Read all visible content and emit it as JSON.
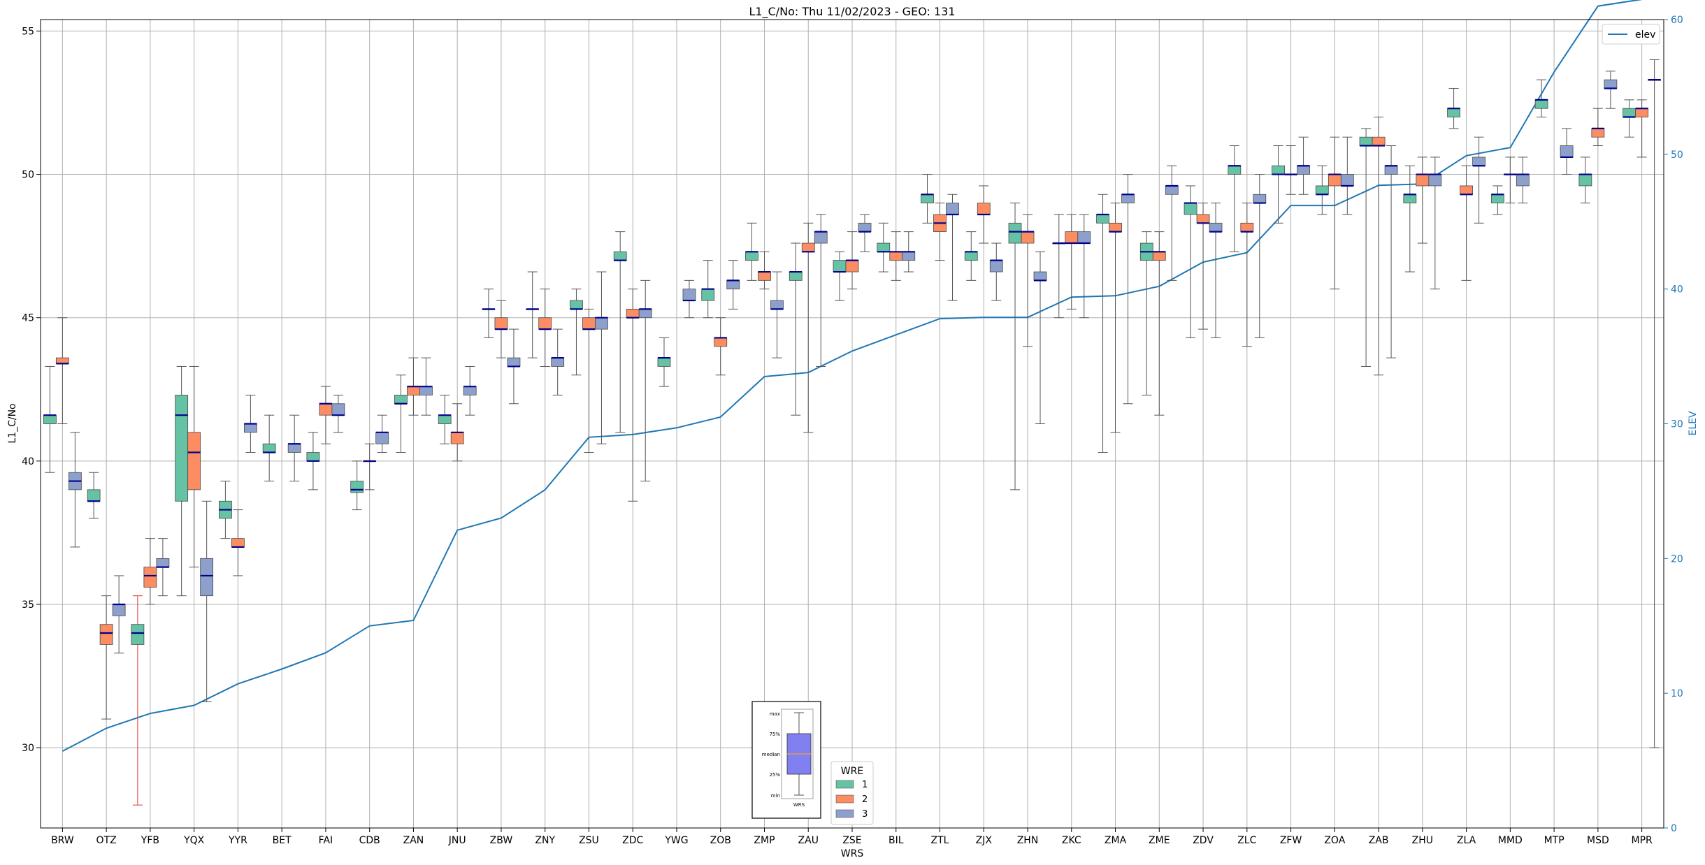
{
  "chart_data": {
    "type": "box",
    "title": "L1_C/No: Thu 11/02/2023 - GEO: 131",
    "xlabel": "WRS",
    "ylabel": "L1_C/No",
    "y2label": "ELEV",
    "ylim": [
      27.2,
      55.4
    ],
    "y2lim": [
      0,
      60
    ],
    "yticks": [
      30,
      35,
      40,
      45,
      50,
      55
    ],
    "y2ticks": [
      0,
      10,
      20,
      30,
      40,
      50,
      60
    ],
    "grid": true,
    "categories": [
      "BRW",
      "OTZ",
      "YFB",
      "YQX",
      "YYR",
      "BET",
      "FAI",
      "CDB",
      "ZAN",
      "JNU",
      "ZBW",
      "ZNY",
      "ZSU",
      "ZDC",
      "YWG",
      "ZOB",
      "ZMP",
      "ZAU",
      "ZSE",
      "BIL",
      "ZTL",
      "ZJX",
      "ZHN",
      "ZKC",
      "ZMA",
      "ZME",
      "ZDV",
      "ZLC",
      "ZFW",
      "ZOA",
      "ZAB",
      "ZHU",
      "ZLA",
      "MMD",
      "MTP",
      "MSD",
      "MPR"
    ],
    "legend": {
      "title": "WRE",
      "placement": "bottom-center",
      "entries": [
        {
          "name": "1",
          "color": "#66c2a5"
        },
        {
          "name": "2",
          "color": "#fc8d62"
        },
        {
          "name": "3",
          "color": "#8da0cb"
        }
      ]
    },
    "line_legend": {
      "name": "elev",
      "color": "#1f77b4",
      "placement": "top-right"
    },
    "inset_labels": [
      "max",
      "75%",
      "median",
      "25%",
      "min"
    ],
    "inset_xlabel": "WRS",
    "colors": {
      "1": "#66c2a5",
      "2": "#fc8d62",
      "3": "#8da0cb",
      "median": "#00008b",
      "whisker": "#555555",
      "whisker_alert": "#e03030",
      "elev": "#1f77b4",
      "inset_box": "#8080f0"
    },
    "boxes": [
      {
        "cat": "BRW",
        "wre": 1,
        "min": 39.6,
        "q1": 41.3,
        "median": 41.6,
        "q3": 41.6,
        "max": 43.3
      },
      {
        "cat": "BRW",
        "wre": 2,
        "min": 41.3,
        "q1": 43.4,
        "median": 43.4,
        "q3": 43.6,
        "max": 45.0
      },
      {
        "cat": "BRW",
        "wre": 3,
        "min": 37.0,
        "q1": 39.0,
        "median": 39.3,
        "q3": 39.6,
        "max": 41.0
      },
      {
        "cat": "OTZ",
        "wre": 1,
        "min": 38.0,
        "q1": 38.6,
        "median": 38.6,
        "q3": 39.0,
        "max": 39.6
      },
      {
        "cat": "OTZ",
        "wre": 2,
        "min": 31.0,
        "q1": 33.6,
        "median": 34.0,
        "q3": 34.3,
        "max": 35.3
      },
      {
        "cat": "OTZ",
        "wre": 3,
        "min": 33.3,
        "q1": 34.6,
        "median": 35.0,
        "q3": 35.0,
        "max": 36.0
      },
      {
        "cat": "YFB",
        "wre": 1,
        "min": 28.0,
        "q1": 33.6,
        "median": 34.0,
        "q3": 34.3,
        "max": 35.3,
        "alert": true
      },
      {
        "cat": "YFB",
        "wre": 2,
        "min": 35.0,
        "q1": 35.6,
        "median": 36.0,
        "q3": 36.3,
        "max": 37.3
      },
      {
        "cat": "YFB",
        "wre": 3,
        "min": 35.3,
        "q1": 36.3,
        "median": 36.3,
        "q3": 36.6,
        "max": 37.3
      },
      {
        "cat": "YQX",
        "wre": 1,
        "min": 35.3,
        "q1": 38.6,
        "median": 41.6,
        "q3": 42.3,
        "max": 43.3
      },
      {
        "cat": "YQX",
        "wre": 2,
        "min": 36.3,
        "q1": 39.0,
        "median": 40.3,
        "q3": 41.0,
        "max": 43.3
      },
      {
        "cat": "YQX",
        "wre": 3,
        "min": 31.6,
        "q1": 35.3,
        "median": 36.0,
        "q3": 36.6,
        "max": 38.6
      },
      {
        "cat": "YYR",
        "wre": 1,
        "min": 37.3,
        "q1": 38.0,
        "median": 38.3,
        "q3": 38.6,
        "max": 39.3
      },
      {
        "cat": "YYR",
        "wre": 2,
        "min": 36.0,
        "q1": 37.0,
        "median": 37.0,
        "q3": 37.3,
        "max": 38.3
      },
      {
        "cat": "YYR",
        "wre": 3,
        "min": 40.3,
        "q1": 41.0,
        "median": 41.3,
        "q3": 41.3,
        "max": 42.3
      },
      {
        "cat": "BET",
        "wre": 1,
        "min": 39.3,
        "q1": 40.3,
        "median": 40.3,
        "q3": 40.6,
        "max": 41.6
      },
      {
        "cat": "BET",
        "wre": 3,
        "min": 39.3,
        "q1": 40.3,
        "median": 40.6,
        "q3": 40.6,
        "max": 41.6
      },
      {
        "cat": "FAI",
        "wre": 1,
        "min": 39.0,
        "q1": 40.0,
        "median": 40.0,
        "q3": 40.3,
        "max": 41.0
      },
      {
        "cat": "FAI",
        "wre": 2,
        "min": 40.6,
        "q1": 41.6,
        "median": 42.0,
        "q3": 42.0,
        "max": 42.6
      },
      {
        "cat": "FAI",
        "wre": 3,
        "min": 41.0,
        "q1": 41.6,
        "median": 41.6,
        "q3": 42.0,
        "max": 42.3
      },
      {
        "cat": "CDB",
        "wre": 1,
        "min": 38.3,
        "q1": 38.9,
        "median": 39.0,
        "q3": 39.3,
        "max": 40.0
      },
      {
        "cat": "CDB",
        "wre": 2,
        "min": 39.0,
        "q1": 40.0,
        "median": 40.0,
        "q3": 40.0,
        "max": 40.6
      },
      {
        "cat": "CDB",
        "wre": 3,
        "min": 40.3,
        "q1": 40.6,
        "median": 41.0,
        "q3": 41.0,
        "max": 41.6
      },
      {
        "cat": "ZAN",
        "wre": 1,
        "min": 40.3,
        "q1": 42.0,
        "median": 42.0,
        "q3": 42.3,
        "max": 43.0
      },
      {
        "cat": "ZAN",
        "wre": 2,
        "min": 41.6,
        "q1": 42.3,
        "median": 42.6,
        "q3": 42.6,
        "max": 43.6
      },
      {
        "cat": "ZAN",
        "wre": 3,
        "min": 41.6,
        "q1": 42.3,
        "median": 42.6,
        "q3": 42.6,
        "max": 43.6
      },
      {
        "cat": "JNU",
        "wre": 1,
        "min": 40.6,
        "q1": 41.3,
        "median": 41.6,
        "q3": 41.6,
        "max": 42.3
      },
      {
        "cat": "JNU",
        "wre": 2,
        "min": 40.0,
        "q1": 40.6,
        "median": 41.0,
        "q3": 41.0,
        "max": 42.0
      },
      {
        "cat": "JNU",
        "wre": 3,
        "min": 41.6,
        "q1": 42.3,
        "median": 42.6,
        "q3": 42.6,
        "max": 43.3
      },
      {
        "cat": "ZBW",
        "wre": 1,
        "min": 44.3,
        "q1": 45.3,
        "median": 45.3,
        "q3": 45.3,
        "max": 46.0
      },
      {
        "cat": "ZBW",
        "wre": 2,
        "min": 43.6,
        "q1": 44.6,
        "median": 44.6,
        "q3": 45.0,
        "max": 45.6
      },
      {
        "cat": "ZBW",
        "wre": 3,
        "min": 42.0,
        "q1": 43.3,
        "median": 43.3,
        "q3": 43.6,
        "max": 44.6
      },
      {
        "cat": "ZNY",
        "wre": 1,
        "min": 43.6,
        "q1": 45.3,
        "median": 45.3,
        "q3": 45.3,
        "max": 46.6
      },
      {
        "cat": "ZNY",
        "wre": 2,
        "min": 43.3,
        "q1": 44.6,
        "median": 44.6,
        "q3": 45.0,
        "max": 46.0
      },
      {
        "cat": "ZNY",
        "wre": 3,
        "min": 42.3,
        "q1": 43.3,
        "median": 43.6,
        "q3": 43.6,
        "max": 44.6
      },
      {
        "cat": "ZSU",
        "wre": 1,
        "min": 43.0,
        "q1": 45.3,
        "median": 45.3,
        "q3": 45.6,
        "max": 46.0
      },
      {
        "cat": "ZSU",
        "wre": 2,
        "min": 40.3,
        "q1": 44.6,
        "median": 44.6,
        "q3": 45.0,
        "max": 45.3
      },
      {
        "cat": "ZSU",
        "wre": 3,
        "min": 40.6,
        "q1": 44.6,
        "median": 45.0,
        "q3": 45.0,
        "max": 46.6
      },
      {
        "cat": "ZDC",
        "wre": 1,
        "min": 41.0,
        "q1": 47.0,
        "median": 47.0,
        "q3": 47.3,
        "max": 48.0
      },
      {
        "cat": "ZDC",
        "wre": 2,
        "min": 38.6,
        "q1": 45.0,
        "median": 45.0,
        "q3": 45.3,
        "max": 46.0
      },
      {
        "cat": "ZDC",
        "wre": 3,
        "min": 39.3,
        "q1": 45.0,
        "median": 45.3,
        "q3": 45.3,
        "max": 46.3
      },
      {
        "cat": "YWG",
        "wre": 1,
        "min": 42.6,
        "q1": 43.3,
        "median": 43.6,
        "q3": 43.6,
        "max": 44.3
      },
      {
        "cat": "YWG",
        "wre": 3,
        "min": 45.0,
        "q1": 45.6,
        "median": 45.6,
        "q3": 46.0,
        "max": 46.3
      },
      {
        "cat": "ZOB",
        "wre": 1,
        "min": 45.0,
        "q1": 45.6,
        "median": 46.0,
        "q3": 46.0,
        "max": 47.0
      },
      {
        "cat": "ZOB",
        "wre": 2,
        "min": 43.0,
        "q1": 44.0,
        "median": 44.3,
        "q3": 44.3,
        "max": 45.0
      },
      {
        "cat": "ZOB",
        "wre": 3,
        "min": 45.3,
        "q1": 46.0,
        "median": 46.3,
        "q3": 46.3,
        "max": 47.0
      },
      {
        "cat": "ZMP",
        "wre": 1,
        "min": 46.3,
        "q1": 47.0,
        "median": 47.3,
        "q3": 47.3,
        "max": 48.3
      },
      {
        "cat": "ZMP",
        "wre": 2,
        "min": 46.0,
        "q1": 46.3,
        "median": 46.6,
        "q3": 46.6,
        "max": 47.3
      },
      {
        "cat": "ZMP",
        "wre": 3,
        "min": 43.6,
        "q1": 45.3,
        "median": 45.3,
        "q3": 45.6,
        "max": 46.6
      },
      {
        "cat": "ZAU",
        "wre": 1,
        "min": 41.6,
        "q1": 46.3,
        "median": 46.6,
        "q3": 46.6,
        "max": 47.6
      },
      {
        "cat": "ZAU",
        "wre": 2,
        "min": 41.0,
        "q1": 47.3,
        "median": 47.3,
        "q3": 47.6,
        "max": 48.3
      },
      {
        "cat": "ZAU",
        "wre": 3,
        "min": 43.3,
        "q1": 47.6,
        "median": 48.0,
        "q3": 48.0,
        "max": 48.6
      },
      {
        "cat": "ZSE",
        "wre": 1,
        "min": 45.6,
        "q1": 46.6,
        "median": 46.6,
        "q3": 47.0,
        "max": 47.3
      },
      {
        "cat": "ZSE",
        "wre": 2,
        "min": 46.0,
        "q1": 46.6,
        "median": 47.0,
        "q3": 47.0,
        "max": 48.0
      },
      {
        "cat": "ZSE",
        "wre": 3,
        "min": 47.3,
        "q1": 48.0,
        "median": 48.0,
        "q3": 48.3,
        "max": 48.6
      },
      {
        "cat": "BIL",
        "wre": 1,
        "min": 46.6,
        "q1": 47.3,
        "median": 47.3,
        "q3": 47.6,
        "max": 48.3
      },
      {
        "cat": "BIL",
        "wre": 2,
        "min": 46.3,
        "q1": 47.0,
        "median": 47.3,
        "q3": 47.3,
        "max": 48.0
      },
      {
        "cat": "BIL",
        "wre": 3,
        "min": 46.6,
        "q1": 47.0,
        "median": 47.3,
        "q3": 47.3,
        "max": 48.0
      },
      {
        "cat": "ZTL",
        "wre": 1,
        "min": 48.3,
        "q1": 49.0,
        "median": 49.3,
        "q3": 49.3,
        "max": 50.0
      },
      {
        "cat": "ZTL",
        "wre": 2,
        "min": 47.0,
        "q1": 48.0,
        "median": 48.3,
        "q3": 48.6,
        "max": 49.0
      },
      {
        "cat": "ZTL",
        "wre": 3,
        "min": 45.6,
        "q1": 48.6,
        "median": 48.6,
        "q3": 49.0,
        "max": 49.3
      },
      {
        "cat": "ZJX",
        "wre": 1,
        "min": 46.3,
        "q1": 47.0,
        "median": 47.3,
        "q3": 47.3,
        "max": 48.0
      },
      {
        "cat": "ZJX",
        "wre": 2,
        "min": 47.6,
        "q1": 48.6,
        "median": 48.6,
        "q3": 49.0,
        "max": 49.6
      },
      {
        "cat": "ZJX",
        "wre": 3,
        "min": 45.6,
        "q1": 46.6,
        "median": 47.0,
        "q3": 47.0,
        "max": 47.6
      },
      {
        "cat": "ZHN",
        "wre": 1,
        "min": 39.0,
        "q1": 47.6,
        "median": 48.0,
        "q3": 48.3,
        "max": 49.0
      },
      {
        "cat": "ZHN",
        "wre": 2,
        "min": 44.0,
        "q1": 47.6,
        "median": 48.0,
        "q3": 48.0,
        "max": 48.6
      },
      {
        "cat": "ZHN",
        "wre": 3,
        "min": 41.3,
        "q1": 46.3,
        "median": 46.3,
        "q3": 46.6,
        "max": 47.3
      },
      {
        "cat": "ZKC",
        "wre": 1,
        "min": 45.0,
        "q1": 47.6,
        "median": 47.6,
        "q3": 47.6,
        "max": 48.6
      },
      {
        "cat": "ZKC",
        "wre": 2,
        "min": 45.3,
        "q1": 47.6,
        "median": 47.6,
        "q3": 48.0,
        "max": 48.6
      },
      {
        "cat": "ZKC",
        "wre": 3,
        "min": 45.0,
        "q1": 47.6,
        "median": 47.6,
        "q3": 48.0,
        "max": 48.6
      },
      {
        "cat": "ZMA",
        "wre": 1,
        "min": 40.3,
        "q1": 48.3,
        "median": 48.6,
        "q3": 48.6,
        "max": 49.3
      },
      {
        "cat": "ZMA",
        "wre": 2,
        "min": 41.0,
        "q1": 48.0,
        "median": 48.0,
        "q3": 48.3,
        "max": 49.0
      },
      {
        "cat": "ZMA",
        "wre": 3,
        "min": 42.0,
        "q1": 49.0,
        "median": 49.3,
        "q3": 49.3,
        "max": 50.0
      },
      {
        "cat": "ZME",
        "wre": 1,
        "min": 42.3,
        "q1": 47.0,
        "median": 47.3,
        "q3": 47.6,
        "max": 48.0
      },
      {
        "cat": "ZME",
        "wre": 2,
        "min": 41.6,
        "q1": 47.0,
        "median": 47.3,
        "q3": 47.3,
        "max": 48.0
      },
      {
        "cat": "ZME",
        "wre": 3,
        "min": 46.3,
        "q1": 49.3,
        "median": 49.6,
        "q3": 49.6,
        "max": 50.3
      },
      {
        "cat": "ZDV",
        "wre": 1,
        "min": 44.3,
        "q1": 48.6,
        "median": 49.0,
        "q3": 49.0,
        "max": 49.6
      },
      {
        "cat": "ZDV",
        "wre": 2,
        "min": 44.6,
        "q1": 48.3,
        "median": 48.3,
        "q3": 48.6,
        "max": 49.0
      },
      {
        "cat": "ZDV",
        "wre": 3,
        "min": 44.3,
        "q1": 48.0,
        "median": 48.0,
        "q3": 48.3,
        "max": 49.0
      },
      {
        "cat": "ZLC",
        "wre": 1,
        "min": 47.3,
        "q1": 50.0,
        "median": 50.3,
        "q3": 50.3,
        "max": 51.0
      },
      {
        "cat": "ZLC",
        "wre": 2,
        "min": 44.0,
        "q1": 48.0,
        "median": 48.0,
        "q3": 48.3,
        "max": 49.0
      },
      {
        "cat": "ZLC",
        "wre": 3,
        "min": 44.3,
        "q1": 49.0,
        "median": 49.0,
        "q3": 49.3,
        "max": 50.0
      },
      {
        "cat": "ZFW",
        "wre": 1,
        "min": 48.3,
        "q1": 50.0,
        "median": 50.0,
        "q3": 50.3,
        "max": 51.0
      },
      {
        "cat": "ZFW",
        "wre": 2,
        "min": 49.3,
        "q1": 50.0,
        "median": 50.0,
        "q3": 50.0,
        "max": 51.0
      },
      {
        "cat": "ZFW",
        "wre": 3,
        "min": 49.3,
        "q1": 50.0,
        "median": 50.3,
        "q3": 50.3,
        "max": 51.3
      },
      {
        "cat": "ZOA",
        "wre": 1,
        "min": 48.6,
        "q1": 49.3,
        "median": 49.3,
        "q3": 49.6,
        "max": 50.3
      },
      {
        "cat": "ZOA",
        "wre": 2,
        "min": 46.0,
        "q1": 49.6,
        "median": 50.0,
        "q3": 50.0,
        "max": 51.3
      },
      {
        "cat": "ZOA",
        "wre": 3,
        "min": 48.6,
        "q1": 49.6,
        "median": 49.6,
        "q3": 50.0,
        "max": 51.3
      },
      {
        "cat": "ZAB",
        "wre": 1,
        "min": 43.3,
        "q1": 51.0,
        "median": 51.0,
        "q3": 51.3,
        "max": 51.6
      },
      {
        "cat": "ZAB",
        "wre": 2,
        "min": 43.0,
        "q1": 51.0,
        "median": 51.0,
        "q3": 51.3,
        "max": 52.0
      },
      {
        "cat": "ZAB",
        "wre": 3,
        "min": 43.6,
        "q1": 50.0,
        "median": 50.3,
        "q3": 50.3,
        "max": 51.0
      },
      {
        "cat": "ZHU",
        "wre": 1,
        "min": 46.6,
        "q1": 49.0,
        "median": 49.3,
        "q3": 49.3,
        "max": 50.3
      },
      {
        "cat": "ZHU",
        "wre": 2,
        "min": 47.6,
        "q1": 49.6,
        "median": 50.0,
        "q3": 50.0,
        "max": 50.6
      },
      {
        "cat": "ZHU",
        "wre": 3,
        "min": 46.0,
        "q1": 49.6,
        "median": 50.0,
        "q3": 50.0,
        "max": 50.6
      },
      {
        "cat": "ZLA",
        "wre": 1,
        "min": 51.6,
        "q1": 52.0,
        "median": 52.3,
        "q3": 52.3,
        "max": 53.0
      },
      {
        "cat": "ZLA",
        "wre": 2,
        "min": 46.3,
        "q1": 49.3,
        "median": 49.3,
        "q3": 49.6,
        "max": 50.3
      },
      {
        "cat": "ZLA",
        "wre": 3,
        "min": 48.3,
        "q1": 50.3,
        "median": 50.3,
        "q3": 50.6,
        "max": 51.3
      },
      {
        "cat": "MMD",
        "wre": 1,
        "min": 48.6,
        "q1": 49.0,
        "median": 49.3,
        "q3": 49.3,
        "max": 49.6
      },
      {
        "cat": "MMD",
        "wre": 2,
        "min": 49.0,
        "q1": 50.0,
        "median": 50.0,
        "q3": 50.0,
        "max": 50.6
      },
      {
        "cat": "MMD",
        "wre": 3,
        "min": 49.0,
        "q1": 49.6,
        "median": 50.0,
        "q3": 50.0,
        "max": 50.6
      },
      {
        "cat": "MTP",
        "wre": 1,
        "min": 52.0,
        "q1": 52.3,
        "median": 52.6,
        "q3": 52.6,
        "max": 53.3
      },
      {
        "cat": "MTP",
        "wre": 3,
        "min": 50.0,
        "q1": 50.6,
        "median": 50.6,
        "q3": 51.0,
        "max": 51.6
      },
      {
        "cat": "MSD",
        "wre": 1,
        "min": 49.0,
        "q1": 49.6,
        "median": 50.0,
        "q3": 50.0,
        "max": 50.6
      },
      {
        "cat": "MSD",
        "wre": 2,
        "min": 51.0,
        "q1": 51.3,
        "median": 51.6,
        "q3": 51.6,
        "max": 52.3
      },
      {
        "cat": "MSD",
        "wre": 3,
        "min": 52.3,
        "q1": 53.0,
        "median": 53.0,
        "q3": 53.3,
        "max": 53.6
      },
      {
        "cat": "MPR",
        "wre": 1,
        "min": 51.3,
        "q1": 52.0,
        "median": 52.0,
        "q3": 52.3,
        "max": 52.6
      },
      {
        "cat": "MPR",
        "wre": 2,
        "min": 50.6,
        "q1": 52.0,
        "median": 52.3,
        "q3": 52.3,
        "max": 52.6
      },
      {
        "cat": "MPR",
        "wre": 3,
        "min": 30.0,
        "q1": 53.3,
        "median": 53.3,
        "q3": 53.3,
        "max": 54.0
      }
    ],
    "elev": [
      5.7,
      7.4,
      8.5,
      9.1,
      10.7,
      11.8,
      13.0,
      15.0,
      15.4,
      22.1,
      23.0,
      25.1,
      29.0,
      29.2,
      29.7,
      30.5,
      33.5,
      33.8,
      35.4,
      36.6,
      37.8,
      37.9,
      37.9,
      39.4,
      39.5,
      40.2,
      42.0,
      42.7,
      46.2,
      46.2,
      47.7,
      47.8,
      49.9,
      50.5,
      56.1,
      61.0,
      61.5
    ]
  }
}
